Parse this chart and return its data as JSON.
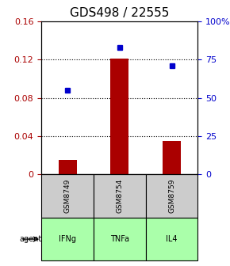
{
  "title": "GDS498 / 22555",
  "samples": [
    "GSM8749",
    "GSM8754",
    "GSM8759"
  ],
  "agents": [
    "IFNg",
    "TNFa",
    "IL4"
  ],
  "log_ratios": [
    0.015,
    0.121,
    0.035
  ],
  "percentile_ranks": [
    55,
    83,
    71
  ],
  "ylim_left": [
    0,
    0.16
  ],
  "ylim_right": [
    0,
    100
  ],
  "yticks_left": [
    0,
    0.04,
    0.08,
    0.12,
    0.16
  ],
  "yticks_right": [
    0,
    25,
    50,
    75,
    100
  ],
  "ytick_labels_left": [
    "0",
    "0.04",
    "0.08",
    "0.12",
    "0.16"
  ],
  "ytick_labels_right": [
    "0",
    "25",
    "50",
    "75",
    "100%"
  ],
  "bar_color": "#aa0000",
  "dot_color": "#0000cc",
  "grid_color": "#000000",
  "sample_box_color": "#cccccc",
  "agent_box_color": "#aaffaa",
  "agent_box_color2": "#88ee88",
  "title_fontsize": 11,
  "tick_fontsize": 8,
  "label_fontsize": 8,
  "legend_fontsize": 7
}
